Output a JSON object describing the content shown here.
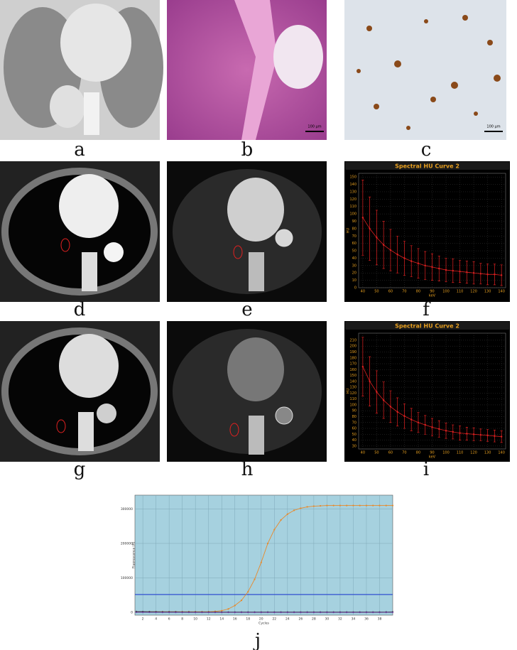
{
  "panel_labels": [
    "a",
    "b",
    "c",
    "d",
    "e",
    "f",
    "g",
    "h",
    "i",
    "j"
  ],
  "scale_bars": [
    "100 μm",
    "100 μm"
  ],
  "chart_data": [
    {
      "type": "errorbar",
      "title": "Spectral HU Curve 2",
      "background": "#000000",
      "grid": true,
      "xlabel": "keV",
      "ylabel": "HU",
      "x": [
        40,
        45,
        50,
        55,
        60,
        65,
        70,
        75,
        80,
        85,
        90,
        95,
        100,
        105,
        110,
        115,
        120,
        125,
        130,
        135,
        140
      ],
      "series": [
        {
          "color": "#e02020",
          "values": [
            95,
            80,
            68,
            58,
            51,
            45,
            40,
            36,
            33,
            30,
            28,
            26,
            24,
            23,
            22,
            21,
            20,
            19,
            18,
            18,
            17
          ],
          "errors": [
            51,
            43,
            37,
            32,
            28,
            25,
            23,
            21,
            20,
            19,
            18,
            17,
            16,
            16,
            15,
            15,
            15,
            14,
            14,
            14,
            14
          ]
        }
      ],
      "xlim": [
        37,
        143
      ],
      "xticks": [
        40,
        50,
        60,
        70,
        80,
        90,
        100,
        110,
        120,
        130,
        140
      ],
      "ylim": [
        0,
        155
      ],
      "yticks": [
        0,
        10,
        20,
        30,
        40,
        50,
        60,
        70,
        80,
        90,
        100,
        110,
        120,
        130,
        140,
        150
      ]
    },
    {
      "type": "errorbar",
      "title": "Spectral HU Curve 2",
      "background": "#000000",
      "grid": true,
      "xlabel": "keV",
      "ylabel": "HU",
      "x": [
        40,
        45,
        50,
        55,
        60,
        65,
        70,
        75,
        80,
        85,
        90,
        95,
        100,
        105,
        110,
        115,
        120,
        125,
        130,
        135,
        140
      ],
      "series": [
        {
          "color": "#e02020",
          "values": [
            165,
            140,
            122,
            108,
            97,
            88,
            81,
            75,
            70,
            66,
            62,
            59,
            56,
            54,
            52,
            51,
            50,
            49,
            48,
            47,
            46
          ],
          "errors": [
            50,
            42,
            36,
            31,
            27,
            24,
            21,
            19,
            17,
            16,
            15,
            14,
            13,
            12,
            12,
            11,
            11,
            10,
            10,
            10,
            10
          ]
        }
      ],
      "xlim": [
        37,
        143
      ],
      "xticks": [
        40,
        50,
        60,
        70,
        80,
        90,
        100,
        110,
        120,
        130,
        140
      ],
      "ylim": [
        25,
        222
      ],
      "yticks": [
        30,
        40,
        50,
        60,
        70,
        80,
        90,
        100,
        110,
        120,
        130,
        140,
        150,
        160,
        170,
        180,
        190,
        200,
        210
      ]
    },
    {
      "type": "line",
      "background": "#a6d1df",
      "grid": true,
      "xlabel": "Cycles",
      "ylabel": "Fluorescence (R)",
      "x": [
        1,
        2,
        3,
        4,
        5,
        6,
        7,
        8,
        9,
        10,
        11,
        12,
        13,
        14,
        15,
        16,
        17,
        18,
        19,
        20,
        21,
        22,
        23,
        24,
        25,
        26,
        27,
        28,
        29,
        30,
        31,
        32,
        33,
        34,
        35,
        36,
        37,
        38,
        39,
        40
      ],
      "series": [
        {
          "color": "#e8892a",
          "values": [
            2000,
            2000,
            2000,
            2000,
            2000,
            2000,
            2000,
            2000,
            2000,
            2000,
            2000,
            2000,
            3000,
            5000,
            10000,
            20000,
            35000,
            60000,
            96000,
            145000,
            200000,
            240000,
            268000,
            285000,
            296000,
            302000,
            306000,
            308000,
            309000,
            310000,
            310000,
            310000,
            310000,
            310000,
            310000,
            310000,
            310000,
            310000,
            310000,
            310000
          ]
        },
        {
          "color": "#333333",
          "values": [
            2500,
            2300,
            2000,
            1800,
            1700,
            1600,
            1500,
            1400,
            1300,
            1200,
            1100,
            1000,
            1000,
            1000,
            1000,
            1000,
            1000,
            1000,
            1000,
            1000,
            1000,
            1000,
            1000,
            1000,
            1000,
            1000,
            1000,
            1000,
            1000,
            1000,
            1000,
            1000,
            1000,
            1000,
            1000,
            1000,
            1000,
            1000,
            1200,
            1500
          ]
        },
        {
          "color": "#6a3d9a",
          "values": [
            500,
            500,
            400,
            400,
            300,
            300,
            300,
            300,
            200,
            200,
            200,
            200,
            200,
            200,
            200,
            200,
            200,
            200,
            200,
            200,
            200,
            200,
            200,
            200,
            200,
            200,
            200,
            200,
            200,
            200,
            200,
            200,
            200,
            200,
            200,
            200,
            200,
            200,
            300,
            400
          ]
        }
      ],
      "threshold": 52000,
      "threshold_color": "#3050d0",
      "xlim": [
        0.8,
        40
      ],
      "xticks": [
        2,
        4,
        6,
        8,
        10,
        12,
        14,
        16,
        18,
        20,
        22,
        24,
        26,
        28,
        30,
        32,
        34,
        36,
        38
      ],
      "ylim": [
        -8000,
        340000
      ],
      "yticks": [
        0,
        100000,
        200000,
        300000
      ]
    }
  ]
}
